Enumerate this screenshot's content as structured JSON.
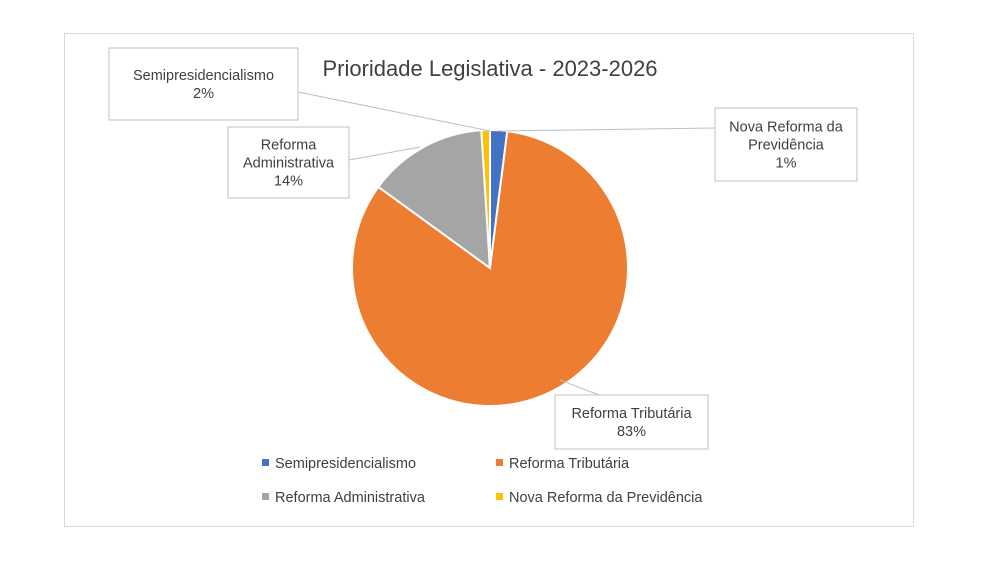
{
  "chart_data": {
    "type": "pie",
    "title": "Prioridade Legislativa - 2023-2026",
    "categories": [
      "Semipresidencialismo",
      "Reforma Tributária",
      "Reforma Administrativa",
      "Nova Reforma da Previdência"
    ],
    "values": [
      2,
      83,
      14,
      1
    ],
    "data_labels": [
      {
        "name_lines": [
          "Semipresidencialismo"
        ],
        "pct": "2%"
      },
      {
        "name_lines": [
          "Reforma Tributária"
        ],
        "pct": "83%"
      },
      {
        "name_lines": [
          "Reforma",
          "Administrativa"
        ],
        "pct": "14%"
      },
      {
        "name_lines": [
          "Nova Reforma da",
          "Previdência"
        ],
        "pct": "1%"
      }
    ],
    "colors": [
      "#4472C4",
      "#ED7D31",
      "#A5A5A5",
      "#FFC000"
    ],
    "legend": {
      "position": "bottom"
    },
    "grid": false
  }
}
